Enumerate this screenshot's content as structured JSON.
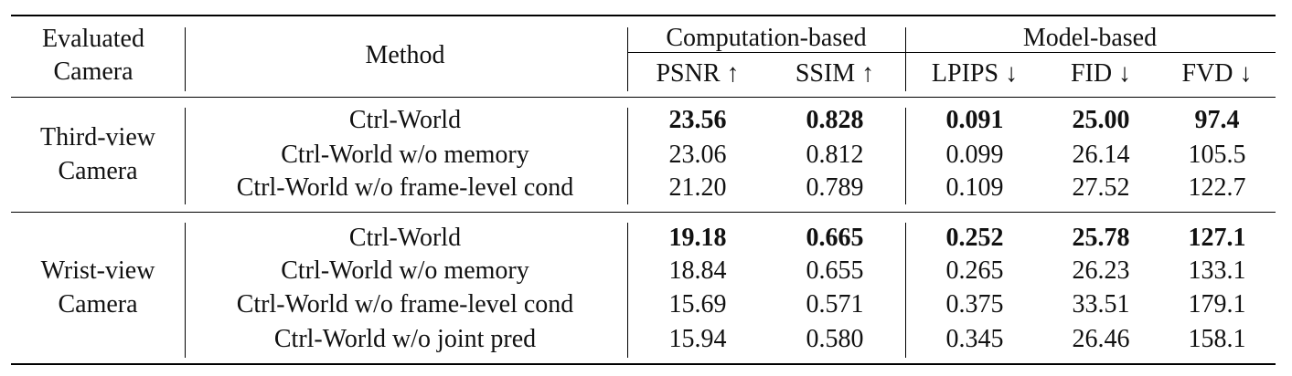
{
  "header": {
    "evaluated_camera": [
      "Evaluated",
      "Camera"
    ],
    "method": "Method",
    "group_computation": "Computation-based",
    "group_model": "Model-based",
    "metrics": [
      "PSNR ↑",
      "SSIM ↑",
      "LPIPS ↓",
      "FID ↓",
      "FVD ↓"
    ]
  },
  "sections": [
    {
      "camera": [
        "Third-view",
        "Camera"
      ],
      "rows": [
        {
          "method": "Ctrl-World",
          "values": [
            "23.56",
            "0.828",
            "0.091",
            "25.00",
            "97.4"
          ],
          "bold": true
        },
        {
          "method": "Ctrl-World w/o memory",
          "values": [
            "23.06",
            "0.812",
            "0.099",
            "26.14",
            "105.5"
          ],
          "bold": false
        },
        {
          "method": "Ctrl-World w/o frame-level cond",
          "values": [
            "21.20",
            "0.789",
            "0.109",
            "27.52",
            "122.7"
          ],
          "bold": false
        }
      ]
    },
    {
      "camera": [
        "Wrist-view",
        "Camera"
      ],
      "rows": [
        {
          "method": "Ctrl-World",
          "values": [
            "19.18",
            "0.665",
            "0.252",
            "25.78",
            "127.1"
          ],
          "bold": true
        },
        {
          "method": "Ctrl-World w/o memory",
          "values": [
            "18.84",
            "0.655",
            "0.265",
            "26.23",
            "133.1"
          ],
          "bold": false
        },
        {
          "method": "Ctrl-World w/o frame-level cond",
          "values": [
            "15.69",
            "0.571",
            "0.375",
            "33.51",
            "179.1"
          ],
          "bold": false
        },
        {
          "method": "Ctrl-World w/o joint pred",
          "values": [
            "15.94",
            "0.580",
            "0.345",
            "26.46",
            "158.1"
          ],
          "bold": false
        }
      ]
    }
  ]
}
